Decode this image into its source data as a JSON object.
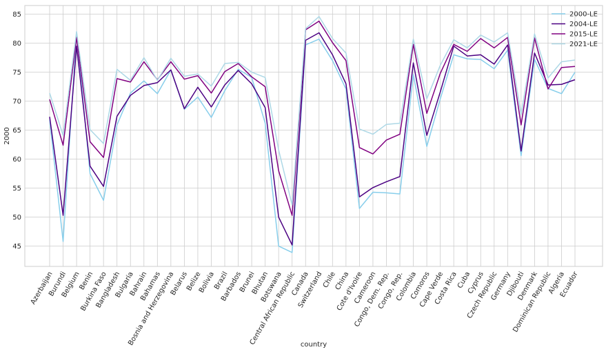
{
  "chart_data": {
    "type": "line",
    "xlabel": "country",
    "ylabel": "2000",
    "ylim": [
      41.5,
      86.5
    ],
    "yticks": [
      45,
      50,
      55,
      60,
      65,
      70,
      75,
      80,
      85
    ],
    "grid": true,
    "legend_position": "top-right",
    "categories": [
      "Azerbaijan",
      "Burundi",
      "Belgium",
      "Benin",
      "Burkina Faso",
      "Bangladesh",
      "Bulgaria",
      "Bahrain",
      "Bahamas",
      "Bosnia and Herzegovina",
      "Belarus",
      "Belize",
      "Bolivia",
      "Brazil",
      "Barbados",
      "Brunei",
      "Bhutan",
      "Botswana",
      "Central African Republic",
      "Canada",
      "Switzerland",
      "Chile",
      "China",
      "Cote d'Ivoire",
      "Cameroon",
      "Congo, Dem. Rep.",
      "Congo, Rep.",
      "Colombia",
      "Comoros",
      "Cape Verde",
      "Costa Rica",
      "Cuba",
      "Cyprus",
      "Czech Republic",
      "Germany",
      "Djibouti",
      "Denmark",
      "Dominican Republic",
      "Algeria",
      "Ecuador"
    ],
    "series": [
      {
        "name": "2000-LE",
        "color": "#87CEEB",
        "values": [
          66.8,
          45.8,
          81.9,
          57.5,
          52.9,
          65.9,
          71.4,
          73.5,
          71.3,
          75.4,
          68.6,
          70.7,
          67.2,
          71.8,
          75.5,
          74.1,
          66.2,
          45.0,
          43.9,
          79.7,
          80.7,
          77.0,
          72.1,
          51.5,
          54.3,
          54.2,
          54.0,
          74.6,
          62.2,
          70.4,
          78.0,
          77.3,
          77.2,
          75.6,
          78.8,
          60.6,
          77.2,
          72.2,
          71.3,
          75.0
        ]
      },
      {
        "name": "2004-LE",
        "color": "#4B0082",
        "values": [
          67.3,
          50.3,
          79.5,
          58.8,
          55.3,
          67.4,
          71.0,
          72.7,
          73.2,
          75.4,
          68.7,
          72.4,
          69.0,
          72.8,
          75.3,
          73.0,
          68.9,
          50.0,
          45.2,
          80.5,
          81.8,
          78.0,
          73.0,
          53.5,
          55.1,
          56.1,
          57.0,
          76.6,
          64.1,
          71.6,
          79.5,
          77.8,
          78.0,
          76.4,
          79.7,
          61.4,
          78.3,
          72.8,
          72.9,
          73.7
        ]
      },
      {
        "name": "2015-LE",
        "color": "#800080",
        "values": [
          70.3,
          62.4,
          81.0,
          63.0,
          60.3,
          73.9,
          73.3,
          76.8,
          73.7,
          76.8,
          73.8,
          74.4,
          71.4,
          75.1,
          76.5,
          74.2,
          72.5,
          58.0,
          50.3,
          82.3,
          83.8,
          80.1,
          77.0,
          62.0,
          60.9,
          63.3,
          64.3,
          79.8,
          67.9,
          74.8,
          79.8,
          78.6,
          80.8,
          79.2,
          81.0,
          65.9,
          80.9,
          72.1,
          75.8,
          76.0
        ]
      },
      {
        "name": "2021-LE",
        "color": "#ADD8E6",
        "values": [
          71.4,
          64.1,
          82.0,
          65.1,
          62.7,
          75.5,
          73.6,
          77.5,
          73.6,
          77.4,
          74.3,
          74.7,
          72.6,
          76.5,
          76.7,
          75.0,
          74.1,
          61.6,
          52.1,
          82.5,
          84.6,
          80.8,
          78.3,
          65.2,
          64.3,
          66.0,
          66.2,
          80.7,
          70.4,
          76.2,
          80.6,
          79.2,
          81.4,
          80.2,
          81.8,
          67.7,
          81.6,
          74.0,
          76.8,
          77.1
        ]
      }
    ]
  }
}
